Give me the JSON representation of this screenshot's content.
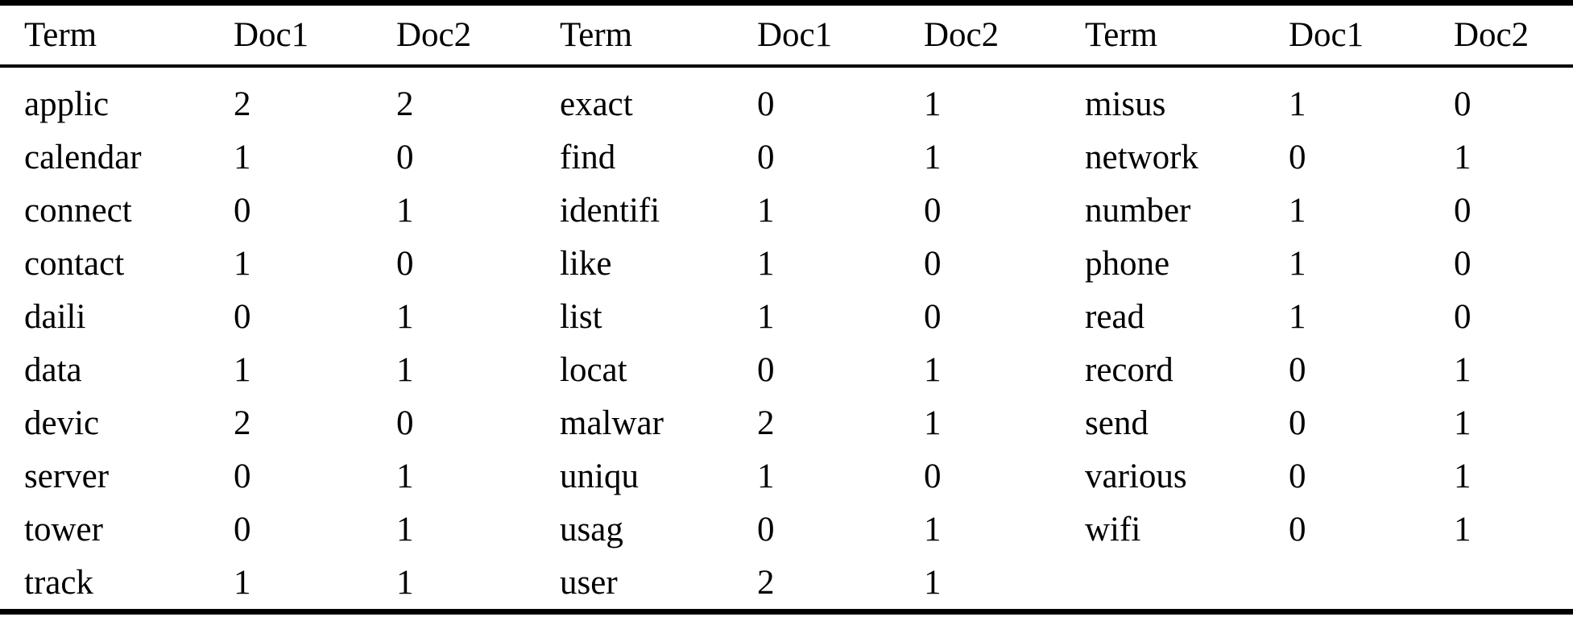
{
  "table": {
    "headers": {
      "term": "Term",
      "doc1": "Doc1",
      "doc2": "Doc2"
    },
    "groups": [
      {
        "rows": [
          {
            "term": "applic",
            "doc1": "2",
            "doc2": "2"
          },
          {
            "term": "calendar",
            "doc1": "1",
            "doc2": "0"
          },
          {
            "term": "connect",
            "doc1": "0",
            "doc2": "1"
          },
          {
            "term": "contact",
            "doc1": "1",
            "doc2": "0"
          },
          {
            "term": "daili",
            "doc1": "0",
            "doc2": "1"
          },
          {
            "term": "data",
            "doc1": "1",
            "doc2": "1"
          },
          {
            "term": "devic",
            "doc1": "2",
            "doc2": "0"
          },
          {
            "term": "server",
            "doc1": "0",
            "doc2": "1"
          },
          {
            "term": "tower",
            "doc1": "0",
            "doc2": "1"
          },
          {
            "term": "track",
            "doc1": "1",
            "doc2": "1"
          }
        ]
      },
      {
        "rows": [
          {
            "term": "exact",
            "doc1": "0",
            "doc2": "1"
          },
          {
            "term": "find",
            "doc1": "0",
            "doc2": "1"
          },
          {
            "term": "identifi",
            "doc1": "1",
            "doc2": "0"
          },
          {
            "term": "like",
            "doc1": "1",
            "doc2": "0"
          },
          {
            "term": "list",
            "doc1": "1",
            "doc2": "0"
          },
          {
            "term": "locat",
            "doc1": "0",
            "doc2": "1"
          },
          {
            "term": "malwar",
            "doc1": "2",
            "doc2": "1"
          },
          {
            "term": "uniqu",
            "doc1": "1",
            "doc2": "0"
          },
          {
            "term": "usag",
            "doc1": "0",
            "doc2": "1"
          },
          {
            "term": "user",
            "doc1": "2",
            "doc2": "1"
          }
        ]
      },
      {
        "rows": [
          {
            "term": "misus",
            "doc1": "1",
            "doc2": "0"
          },
          {
            "term": "network",
            "doc1": "0",
            "doc2": "1"
          },
          {
            "term": "number",
            "doc1": "1",
            "doc2": "0"
          },
          {
            "term": "phone",
            "doc1": "1",
            "doc2": "0"
          },
          {
            "term": "read",
            "doc1": "1",
            "doc2": "0"
          },
          {
            "term": "record",
            "doc1": "0",
            "doc2": "1"
          },
          {
            "term": "send",
            "doc1": "0",
            "doc2": "1"
          },
          {
            "term": "various",
            "doc1": "0",
            "doc2": "1"
          },
          {
            "term": "wifi",
            "doc1": "0",
            "doc2": "1"
          }
        ]
      }
    ]
  }
}
